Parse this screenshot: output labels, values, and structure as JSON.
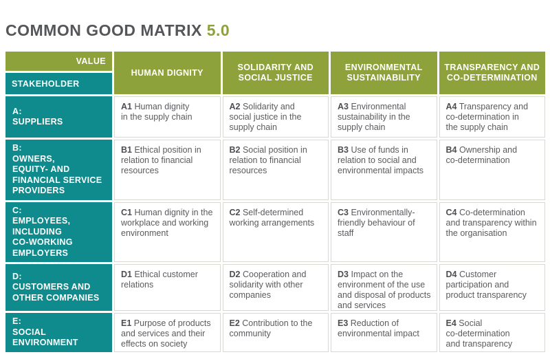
{
  "title": {
    "main": "COMMON GOOD MATRIX",
    "version": "5.0"
  },
  "colors": {
    "green": "#8ea23c",
    "teal": "#0f8b8d",
    "title_gray": "#55565a",
    "body_text": "#5a5b5e",
    "cell_border": "#d8d7d2"
  },
  "header": {
    "corner_top": "VALUE",
    "corner_bottom": "STAKEHOLDER",
    "columns": [
      "HUMAN DIGNITY",
      "SOLIDARITY AND\nSOCIAL JUSTICE",
      "ENVIRONMENTAL\nSUSTAINABILITY",
      "TRANSPARENCY AND\nCO-DETERMINATION"
    ]
  },
  "rows": [
    {
      "stakeholder": "A:\nSUPPLIERS",
      "cells": [
        {
          "code": "A1",
          "text": "Human dignity\nin the supply chain"
        },
        {
          "code": "A2",
          "text": "Solidarity and\nsocial justice in the\nsupply chain"
        },
        {
          "code": "A3",
          "text": "Environmental\nsustainability in the\nsupply chain"
        },
        {
          "code": "A4",
          "text": "Transparency and\nco-determination in\nthe supply chain"
        }
      ]
    },
    {
      "stakeholder": "B:\nOWNERS,\nEQUITY- AND\nFINANCIAL SERVICE\nPROVIDERS",
      "cells": [
        {
          "code": "B1",
          "text": "Ethical position in\nrelation to financial\nresources"
        },
        {
          "code": "B2",
          "text": "Social position in\nrelation to financial\nresources"
        },
        {
          "code": "B3",
          "text": "Use of funds in\nrelation to social and\nenvironmental impacts"
        },
        {
          "code": "B4",
          "text": "Ownership and\nco-determination"
        }
      ]
    },
    {
      "stakeholder": "C:\nEMPLOYEES,\nINCLUDING\nCO-WORKING\nEMPLOYERS",
      "cells": [
        {
          "code": "C1",
          "text": "Human dignity in the\nworkplace and working\nenvironment"
        },
        {
          "code": "C2",
          "text": "Self-determined\nworking arrangements"
        },
        {
          "code": "C3",
          "text": "Environmentally-\nfriendly behaviour of\nstaff"
        },
        {
          "code": "C4",
          "text": "Co-determination\nand transparency within\nthe organisation"
        }
      ]
    },
    {
      "stakeholder": "D:\nCUSTOMERS AND\nOTHER COMPANIES",
      "cells": [
        {
          "code": "D1",
          "text": "Ethical customer\nrelations"
        },
        {
          "code": "D2",
          "text": "Cooperation and\nsolidarity with other\ncompanies"
        },
        {
          "code": "D3",
          "text": "Impact on the\nenvironment of the use\nand disposal of products\nand services"
        },
        {
          "code": "D4",
          "text": "Customer\nparticipation and\nproduct transparency"
        }
      ]
    },
    {
      "stakeholder": "E:\nSOCIAL\nENVIRONMENT",
      "cells": [
        {
          "code": "E1",
          "text": "Purpose of products\nand services and their\neffects on society"
        },
        {
          "code": "E2",
          "text": "Contribution to the\ncommunity"
        },
        {
          "code": "E3",
          "text": "Reduction of\nenvironmental impact"
        },
        {
          "code": "E4",
          "text": "Social\nco-determination\nand transparency"
        }
      ]
    }
  ]
}
